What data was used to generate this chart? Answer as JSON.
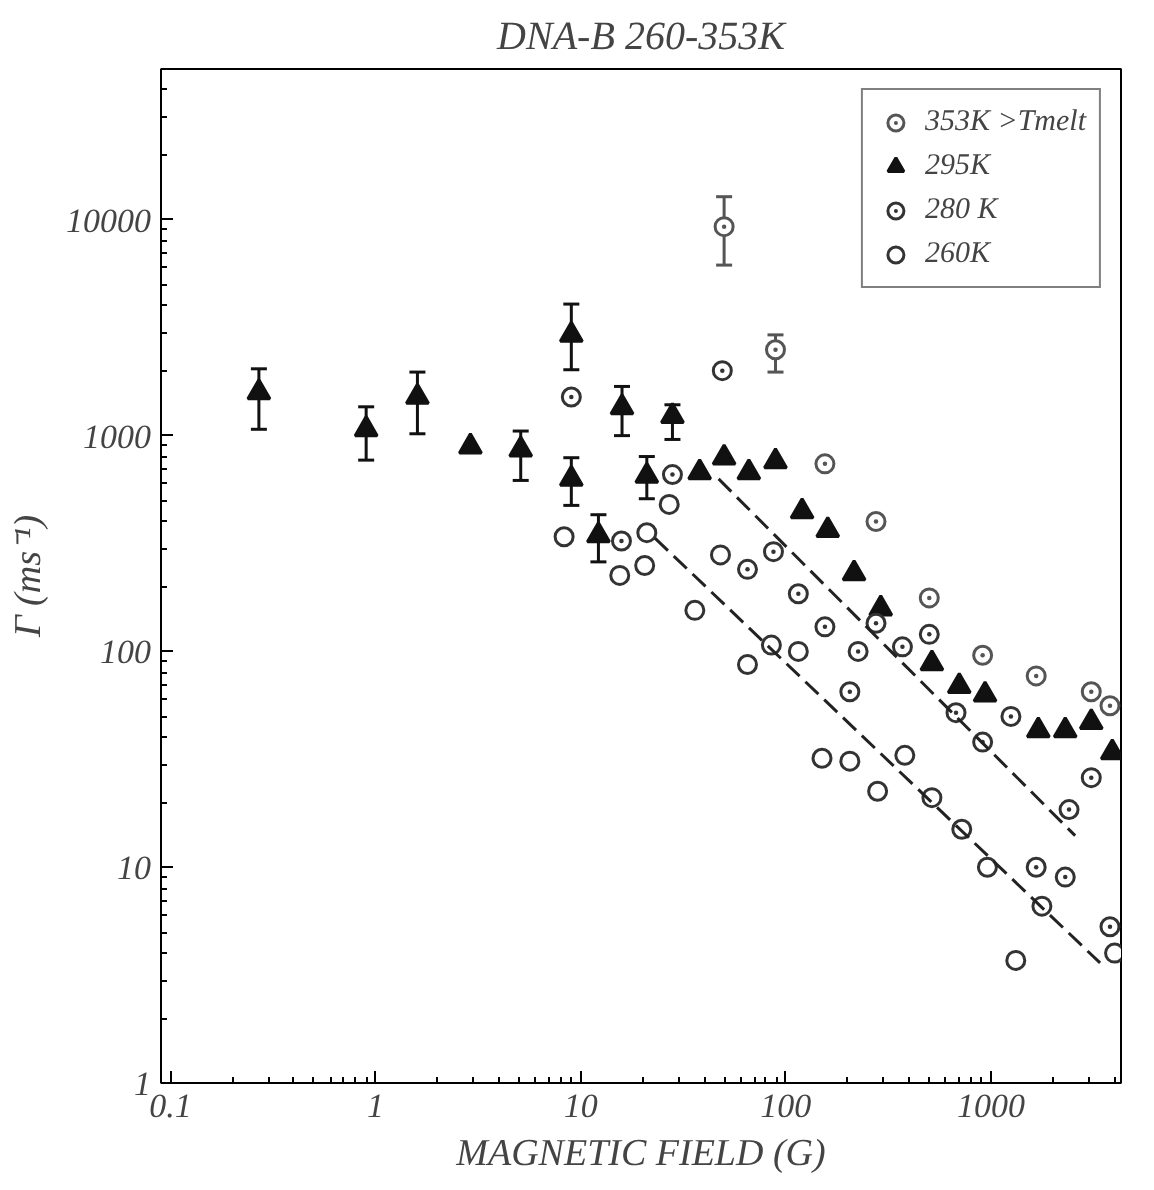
{
  "chart_data": {
    "type": "scatter",
    "title": "DNA-B 260-353K",
    "xlabel": "MAGNETIC FIELD (G)",
    "ylabel": "Γ (ms⁻¹)",
    "log": "xy",
    "xlim": [
      0.09,
      4300
    ],
    "ylim": [
      1,
      50000
    ],
    "xticks": [
      0.1,
      1,
      10,
      100,
      1000
    ],
    "yticks": [
      1,
      10,
      100,
      1000,
      10000
    ],
    "grid": false,
    "legend": "top right",
    "series": [
      {
        "name": "353K >Tmelt",
        "color": "#555555",
        "marker": "circle_dot",
        "x": [
          50,
          89,
          155,
          275,
          500,
          910,
          1660,
          3080,
          3800
        ],
        "values": [
          9300,
          2500,
          740,
          400,
          177,
          96,
          77,
          65,
          56
        ],
        "errors": [
          [
            6170,
            12800
          ],
          [
            1970,
            2930
          ],
          null,
          null,
          null,
          null,
          null,
          null,
          null
        ]
      },
      {
        "name": "295K",
        "color": "#111111",
        "marker": "triangle",
        "x": [
          0.27,
          0.9,
          1.6,
          2.9,
          5.1,
          9,
          9,
          12.2,
          15.9,
          21,
          28,
          38,
          50,
          66,
          89,
          120,
          160,
          215,
          290,
          380,
          515,
          700,
          935,
          1700,
          2300,
          3080,
          3900
        ],
        "values": [
          1585,
          1070,
          1510,
          890,
          860,
          2930,
          630,
          345,
          1350,
          650,
          1230,
          675,
          790,
          675,
          760,
          445,
          365,
          230,
          158,
          null,
          88,
          69,
          63,
          43,
          43,
          47,
          34
        ],
        "errors": [
          [
            1070,
            2040
          ],
          [
            770,
            1360
          ],
          [
            1020,
            1970
          ],
          null,
          [
            620,
            1050
          ],
          [
            2020,
            4070
          ],
          [
            475,
            790
          ],
          [
            260,
            430
          ],
          [
            1000,
            1690
          ],
          [
            510,
            800
          ],
          [
            960,
            1390
          ],
          null,
          null,
          null,
          null,
          null,
          null,
          null,
          null,
          null,
          null,
          null,
          null,
          null,
          null,
          null,
          null
        ]
      },
      {
        "name": "280 K",
        "color": "#333333",
        "marker": "circle_dot",
        "x": [
          9,
          49,
          15.8,
          28,
          65,
          87,
          115,
          155,
          225,
          275,
          370,
          500,
          205,
          675,
          910,
          1250,
          3080,
          2400,
          1660,
          2300,
          3800
        ],
        "values": [
          1510,
          2000,
          325,
          660,
          240,
          290,
          185,
          130,
          100,
          135,
          105,
          120,
          65,
          52,
          38,
          50,
          26,
          18.5,
          10,
          9,
          5.3
        ]
      },
      {
        "name": "260K",
        "color": "#333333",
        "marker": "circle",
        "x": [
          8.3,
          15.5,
          20.5,
          27,
          21,
          36,
          48,
          65,
          85,
          115,
          150,
          205,
          280,
          380,
          515,
          720,
          960,
          1770,
          1320,
          4000
        ],
        "values": [
          340,
          225,
          250,
          480,
          355,
          155,
          280,
          87,
          107,
          100,
          32,
          31,
          22.5,
          33,
          21,
          15,
          10,
          6.6,
          3.7,
          4
        ]
      },
      {
        "type": "line",
        "line_style": "dashed",
        "color": "#222222",
        "x": [
          47,
          2570
        ],
        "values": [
          630,
          14
        ]
      },
      {
        "type": "line",
        "line_style": "dashed",
        "color": "#222222",
        "x": [
          23,
          3400
        ],
        "values": [
          335,
          3.6
        ]
      }
    ]
  }
}
